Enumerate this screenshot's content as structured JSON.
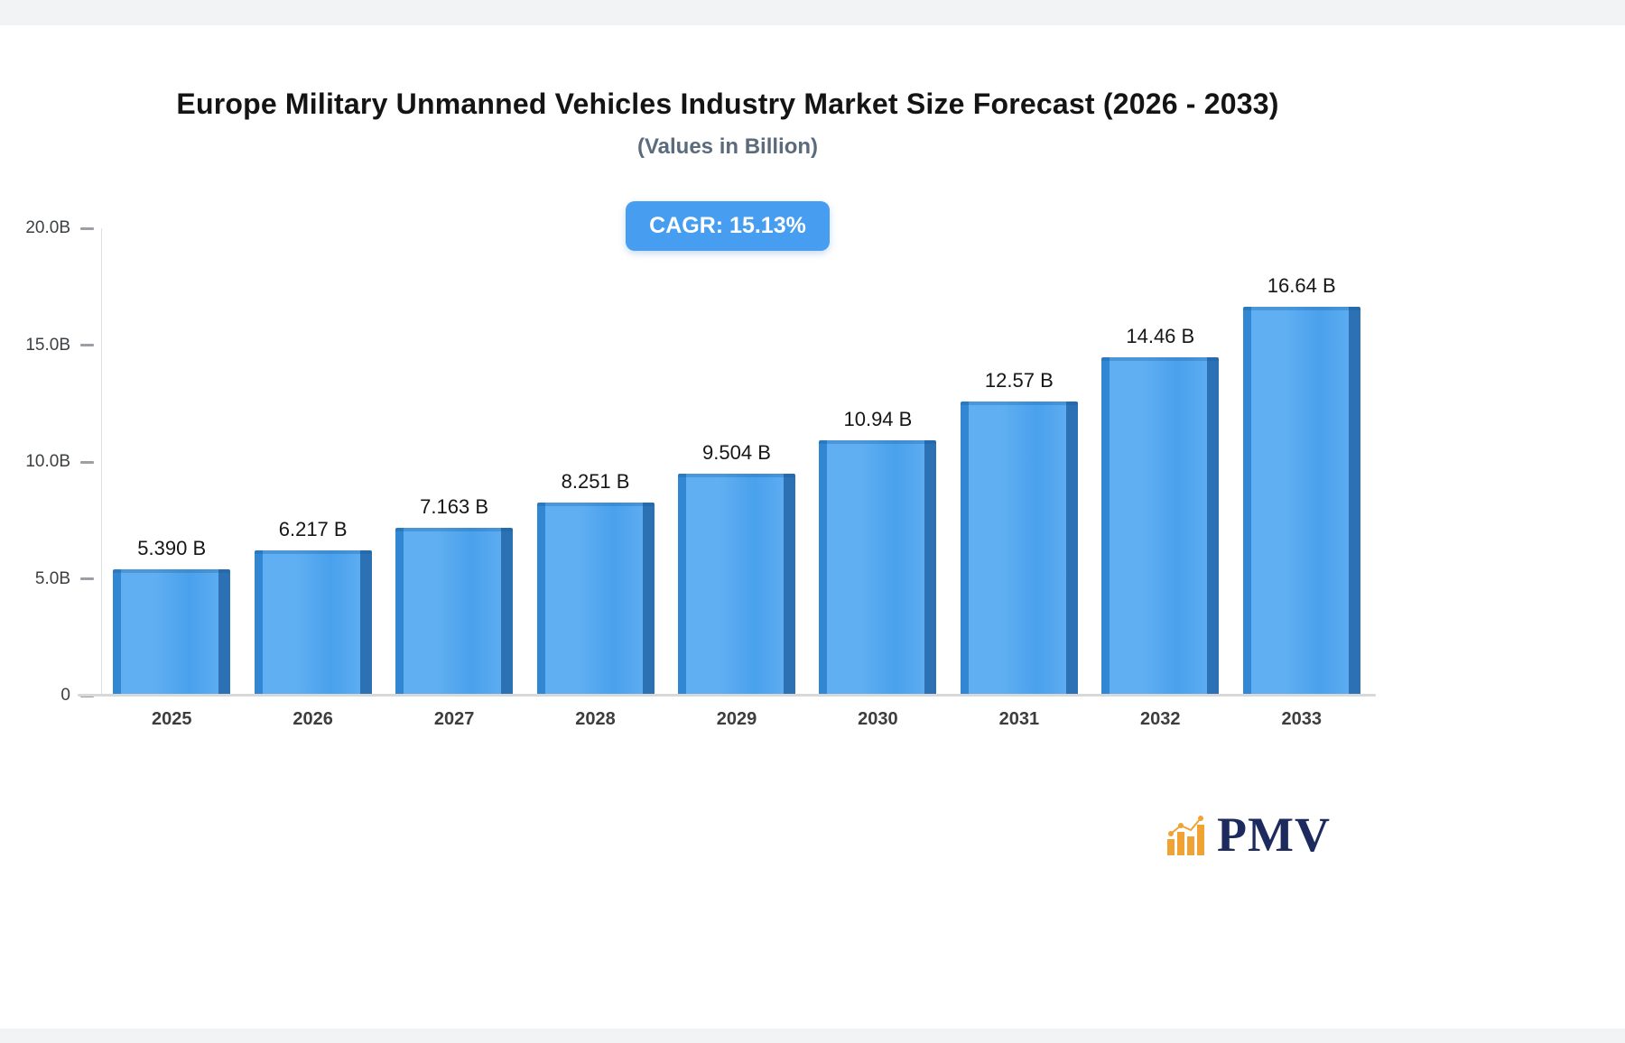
{
  "header": {
    "title": "Europe Military Unmanned Vehicles Industry Market Size Forecast (2026 - 2033)",
    "subtitle": "(Values in Billion)"
  },
  "badge": {
    "label": "CAGR: 15.13%",
    "background": "#479ef1",
    "text_color": "#ffffff"
  },
  "chart_data": {
    "type": "bar",
    "title": "Europe Military Unmanned Vehicles Industry Market Size Forecast (2026 - 2033)",
    "subtitle": "(Values in Billion)",
    "categories": [
      "2025",
      "2026",
      "2027",
      "2028",
      "2029",
      "2030",
      "2031",
      "2032",
      "2033"
    ],
    "values": [
      5.39,
      6.217,
      7.163,
      8.251,
      9.504,
      10.94,
      12.57,
      14.46,
      16.64
    ],
    "value_labels": [
      "5.390 B",
      "6.217 B",
      "7.163 B",
      "8.251 B",
      "9.504 B",
      "10.94 B",
      "12.57 B",
      "14.46 B",
      "16.64 B"
    ],
    "xlabel": "",
    "ylabel": "",
    "ylim": [
      0,
      20
    ],
    "yticks": [
      "20.0B",
      "15.0B",
      "10.0B",
      "5.0B",
      "0"
    ],
    "ytick_values": [
      20,
      15,
      10,
      5,
      0
    ],
    "grid": false,
    "legend": false,
    "bar_color": "#4aa1ec",
    "bar_side_color": "#2b71b4",
    "cagr": "15.13%"
  },
  "footer": {
    "logo_text": "PMV",
    "logo_icon": "bar-chart-icon",
    "logo_text_color": "#1d2a5e",
    "logo_icon_color": "#f0a232"
  }
}
